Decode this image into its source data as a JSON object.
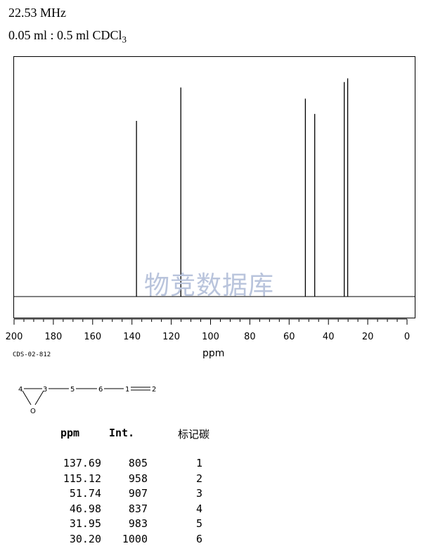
{
  "header": {
    "frequency": "22.53 MHz",
    "sample": "0.05 ml : 0.5 ml CDCl",
    "sample_subscript": "3"
  },
  "chart_data": {
    "type": "line",
    "title": "",
    "xlabel": "ppm",
    "ylabel": "",
    "xlim": [
      200,
      0
    ],
    "x_ticks": [
      200,
      180,
      160,
      140,
      120,
      100,
      80,
      60,
      40,
      20,
      0
    ],
    "x_direction": "reversed",
    "grid": false,
    "series": [
      {
        "peaks": [
          {
            "ppm": 137.69,
            "intensity": 805
          },
          {
            "ppm": 115.12,
            "intensity": 958
          },
          {
            "ppm": 51.74,
            "intensity": 907
          },
          {
            "ppm": 46.98,
            "intensity": 837
          },
          {
            "ppm": 31.95,
            "intensity": 983
          },
          {
            "ppm": 30.2,
            "intensity": 1000
          }
        ]
      }
    ]
  },
  "spectrum_code": "CDS-02-812",
  "watermark": "物竞数据库",
  "molecule": {
    "labels": [
      "4",
      "3",
      "5",
      "6",
      "1",
      "2",
      "O"
    ]
  },
  "table": {
    "headers": [
      "ppm",
      "Int.",
      "标记碳"
    ],
    "rows": [
      [
        "137.69",
        "805",
        "1"
      ],
      [
        "115.12",
        "958",
        "2"
      ],
      [
        "51.74",
        "907",
        "3"
      ],
      [
        "46.98",
        "837",
        "4"
      ],
      [
        "31.95",
        "983",
        "5"
      ],
      [
        "30.20",
        "1000",
        "6"
      ]
    ]
  }
}
